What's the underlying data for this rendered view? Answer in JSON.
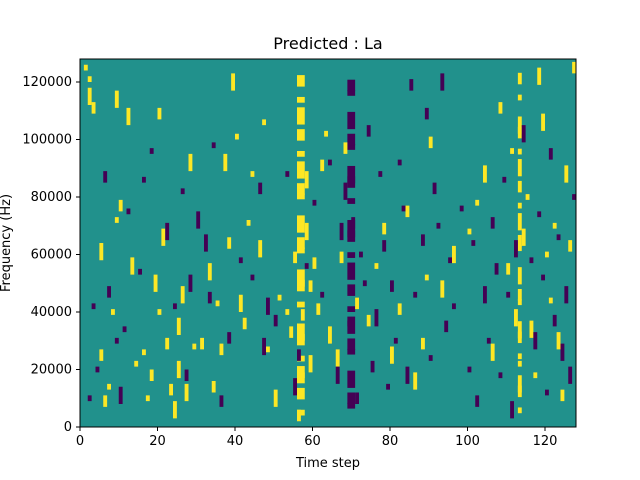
{
  "chart_data": {
    "type": "heatmap",
    "title": "Predicted : La",
    "xlabel": "Time step",
    "ylabel": "Frequency (Hz)",
    "xlim": [
      0,
      128
    ],
    "ylim": [
      0,
      128000
    ],
    "xticks": [
      0,
      20,
      40,
      60,
      80,
      100,
      120
    ],
    "yticks": [
      0,
      20000,
      40000,
      60000,
      80000,
      100000,
      120000
    ],
    "colorscale": {
      "low": "#440154",
      "mid": "#21918c",
      "high": "#fde725"
    },
    "background_value": 0,
    "cells": [
      [
        1,
        125000,
        1
      ],
      [
        2,
        121000,
        1
      ],
      [
        2,
        117000,
        1
      ],
      [
        3,
        112000,
        1
      ],
      [
        5,
        63000,
        1
      ],
      [
        5,
        26000,
        1
      ],
      [
        6,
        10000,
        1
      ],
      [
        7,
        14000,
        1
      ],
      [
        8,
        40000,
        1
      ],
      [
        9,
        116000,
        1
      ],
      [
        9,
        72000,
        1
      ],
      [
        10,
        78000,
        1
      ],
      [
        12,
        110000,
        1
      ],
      [
        13,
        58000,
        1
      ],
      [
        14,
        22000,
        1
      ],
      [
        16,
        26000,
        1
      ],
      [
        17,
        10000,
        1
      ],
      [
        18,
        19000,
        1
      ],
      [
        19,
        52000,
        1
      ],
      [
        20,
        40000,
        1
      ],
      [
        20,
        110000,
        1
      ],
      [
        21,
        68000,
        1
      ],
      [
        22,
        30000,
        1
      ],
      [
        23,
        14000,
        1
      ],
      [
        24,
        8000,
        1
      ],
      [
        25,
        22000,
        1
      ],
      [
        25,
        37000,
        1
      ],
      [
        26,
        48000,
        1
      ],
      [
        27,
        14000,
        1
      ],
      [
        28,
        94000,
        1
      ],
      [
        29,
        28000,
        1
      ],
      [
        31,
        30000,
        1
      ],
      [
        33,
        56000,
        1
      ],
      [
        34,
        15000,
        1
      ],
      [
        35,
        43000,
        1
      ],
      [
        36,
        28000,
        1
      ],
      [
        37,
        94000,
        1
      ],
      [
        38,
        65000,
        1
      ],
      [
        39,
        122000,
        1
      ],
      [
        40,
        101000,
        1
      ],
      [
        41,
        45000,
        1
      ],
      [
        42,
        37000,
        1
      ],
      [
        43,
        71000,
        1
      ],
      [
        44,
        88000,
        1
      ],
      [
        46,
        64000,
        1
      ],
      [
        47,
        106000,
        1
      ],
      [
        48,
        27000,
        1
      ],
      [
        50,
        12000,
        1
      ],
      [
        51,
        45000,
        1
      ],
      [
        53,
        40000,
        1
      ],
      [
        54,
        34000,
        1
      ],
      [
        55,
        60000,
        1
      ],
      [
        56,
        5000,
        1
      ],
      [
        57,
        18000,
        1
      ],
      [
        57,
        40000,
        1
      ],
      [
        58,
        70000,
        1
      ],
      [
        58,
        88000,
        1
      ],
      [
        59,
        24000,
        1
      ],
      [
        59,
        50000,
        1
      ],
      [
        60,
        58000,
        1
      ],
      [
        61,
        42000,
        1
      ],
      [
        62,
        92000,
        1
      ],
      [
        63,
        102000,
        1
      ],
      [
        64,
        34000,
        1
      ],
      [
        66,
        26000,
        1
      ],
      [
        67,
        60000,
        1
      ],
      [
        68,
        98000,
        1
      ],
      [
        71,
        44000,
        1
      ],
      [
        74,
        38000,
        1
      ],
      [
        76,
        56000,
        1
      ],
      [
        78,
        70000,
        1
      ],
      [
        80,
        27000,
        1
      ],
      [
        82,
        42000,
        1
      ],
      [
        84,
        76000,
        1
      ],
      [
        86,
        18000,
        1
      ],
      [
        88,
        30000,
        1
      ],
      [
        89,
        52000,
        1
      ],
      [
        90,
        100000,
        1
      ],
      [
        93,
        50000,
        1
      ],
      [
        96,
        62000,
        1
      ],
      [
        100,
        68000,
        1
      ],
      [
        102,
        78000,
        1
      ],
      [
        104,
        90000,
        1
      ],
      [
        106,
        28000,
        1
      ],
      [
        108,
        112000,
        1
      ],
      [
        110,
        56000,
        1
      ],
      [
        111,
        96000,
        1
      ],
      [
        112,
        40000,
        1
      ],
      [
        113,
        22000,
        1
      ],
      [
        114,
        68000,
        1
      ],
      [
        115,
        80000,
        1
      ],
      [
        116,
        36000,
        1
      ],
      [
        117,
        18000,
        1
      ],
      [
        118,
        124000,
        1
      ],
      [
        119,
        108000,
        1
      ],
      [
        120,
        60000,
        1
      ],
      [
        121,
        44000,
        1
      ],
      [
        122,
        70000,
        1
      ],
      [
        123,
        32000,
        1
      ],
      [
        124,
        12000,
        1
      ],
      [
        125,
        90000,
        1
      ],
      [
        126,
        64000,
        1
      ],
      [
        127,
        126000,
        1
      ],
      [
        2,
        10000,
        -1
      ],
      [
        3,
        42000,
        -1
      ],
      [
        4,
        20000,
        -1
      ],
      [
        6,
        88000,
        -1
      ],
      [
        7,
        48000,
        -1
      ],
      [
        9,
        30000,
        -1
      ],
      [
        10,
        13000,
        -1
      ],
      [
        11,
        34000,
        -1
      ],
      [
        12,
        75000,
        -1
      ],
      [
        15,
        54000,
        -1
      ],
      [
        16,
        86000,
        -1
      ],
      [
        18,
        96000,
        -1
      ],
      [
        22,
        70000,
        -1
      ],
      [
        24,
        42000,
        -1
      ],
      [
        26,
        82000,
        -1
      ],
      [
        27,
        19000,
        -1
      ],
      [
        28,
        52000,
        -1
      ],
      [
        30,
        74000,
        -1
      ],
      [
        32,
        66000,
        -1
      ],
      [
        33,
        46000,
        -1
      ],
      [
        34,
        98000,
        -1
      ],
      [
        36,
        10000,
        -1
      ],
      [
        38,
        32000,
        -1
      ],
      [
        41,
        58000,
        -1
      ],
      [
        44,
        52000,
        -1
      ],
      [
        46,
        84000,
        -1
      ],
      [
        47,
        30000,
        -1
      ],
      [
        48,
        44000,
        -1
      ],
      [
        50,
        38000,
        -1
      ],
      [
        53,
        88000,
        -1
      ],
      [
        55,
        16000,
        -1
      ],
      [
        56,
        26000,
        -1
      ],
      [
        58,
        56000,
        -1
      ],
      [
        60,
        78000,
        -1
      ],
      [
        62,
        46000,
        -1
      ],
      [
        64,
        92000,
        -1
      ],
      [
        66,
        20000,
        -1
      ],
      [
        67,
        70000,
        -1
      ],
      [
        68,
        84000,
        -1
      ],
      [
        69,
        36000,
        -1
      ],
      [
        70,
        72000,
        -1
      ],
      [
        71,
        11000,
        -1
      ],
      [
        72,
        60000,
        -1
      ],
      [
        73,
        50000,
        -1
      ],
      [
        74,
        104000,
        -1
      ],
      [
        75,
        22000,
        -1
      ],
      [
        76,
        40000,
        -1
      ],
      [
        77,
        88000,
        -1
      ],
      [
        78,
        64000,
        -1
      ],
      [
        79,
        14000,
        -1
      ],
      [
        80,
        50000,
        -1
      ],
      [
        81,
        30000,
        -1
      ],
      [
        82,
        92000,
        -1
      ],
      [
        83,
        76000,
        -1
      ],
      [
        84,
        20000,
        -1
      ],
      [
        85,
        120000,
        -1
      ],
      [
        86,
        46000,
        -1
      ],
      [
        88,
        66000,
        -1
      ],
      [
        89,
        110000,
        -1
      ],
      [
        90,
        24000,
        -1
      ],
      [
        91,
        84000,
        -1
      ],
      [
        92,
        70000,
        -1
      ],
      [
        93,
        122000,
        -1
      ],
      [
        94,
        36000,
        -1
      ],
      [
        95,
        58000,
        -1
      ],
      [
        96,
        42000,
        -1
      ],
      [
        98,
        76000,
        -1
      ],
      [
        100,
        20000,
        -1
      ],
      [
        101,
        64000,
        -1
      ],
      [
        102,
        10000,
        -1
      ],
      [
        104,
        48000,
        -1
      ],
      [
        105,
        30000,
        -1
      ],
      [
        106,
        72000,
        -1
      ],
      [
        107,
        56000,
        -1
      ],
      [
        108,
        18000,
        -1
      ],
      [
        109,
        86000,
        -1
      ],
      [
        110,
        46000,
        -1
      ],
      [
        111,
        8000,
        -1
      ],
      [
        112,
        64000,
        -1
      ],
      [
        114,
        104000,
        -1
      ],
      [
        116,
        58000,
        -1
      ],
      [
        117,
        32000,
        -1
      ],
      [
        118,
        74000,
        -1
      ],
      [
        119,
        52000,
        -1
      ],
      [
        120,
        12000,
        -1
      ],
      [
        121,
        96000,
        -1
      ],
      [
        122,
        38000,
        -1
      ],
      [
        123,
        66000,
        -1
      ],
      [
        124,
        28000,
        -1
      ],
      [
        125,
        48000,
        -1
      ],
      [
        126,
        20000,
        -1
      ],
      [
        127,
        80000,
        -1
      ]
    ],
    "bands": [
      {
        "x": 56,
        "width": 2,
        "value": 1
      },
      {
        "x": 69,
        "width": 2,
        "value": -1
      },
      {
        "x": 113,
        "width": 1,
        "value": 1
      }
    ]
  }
}
